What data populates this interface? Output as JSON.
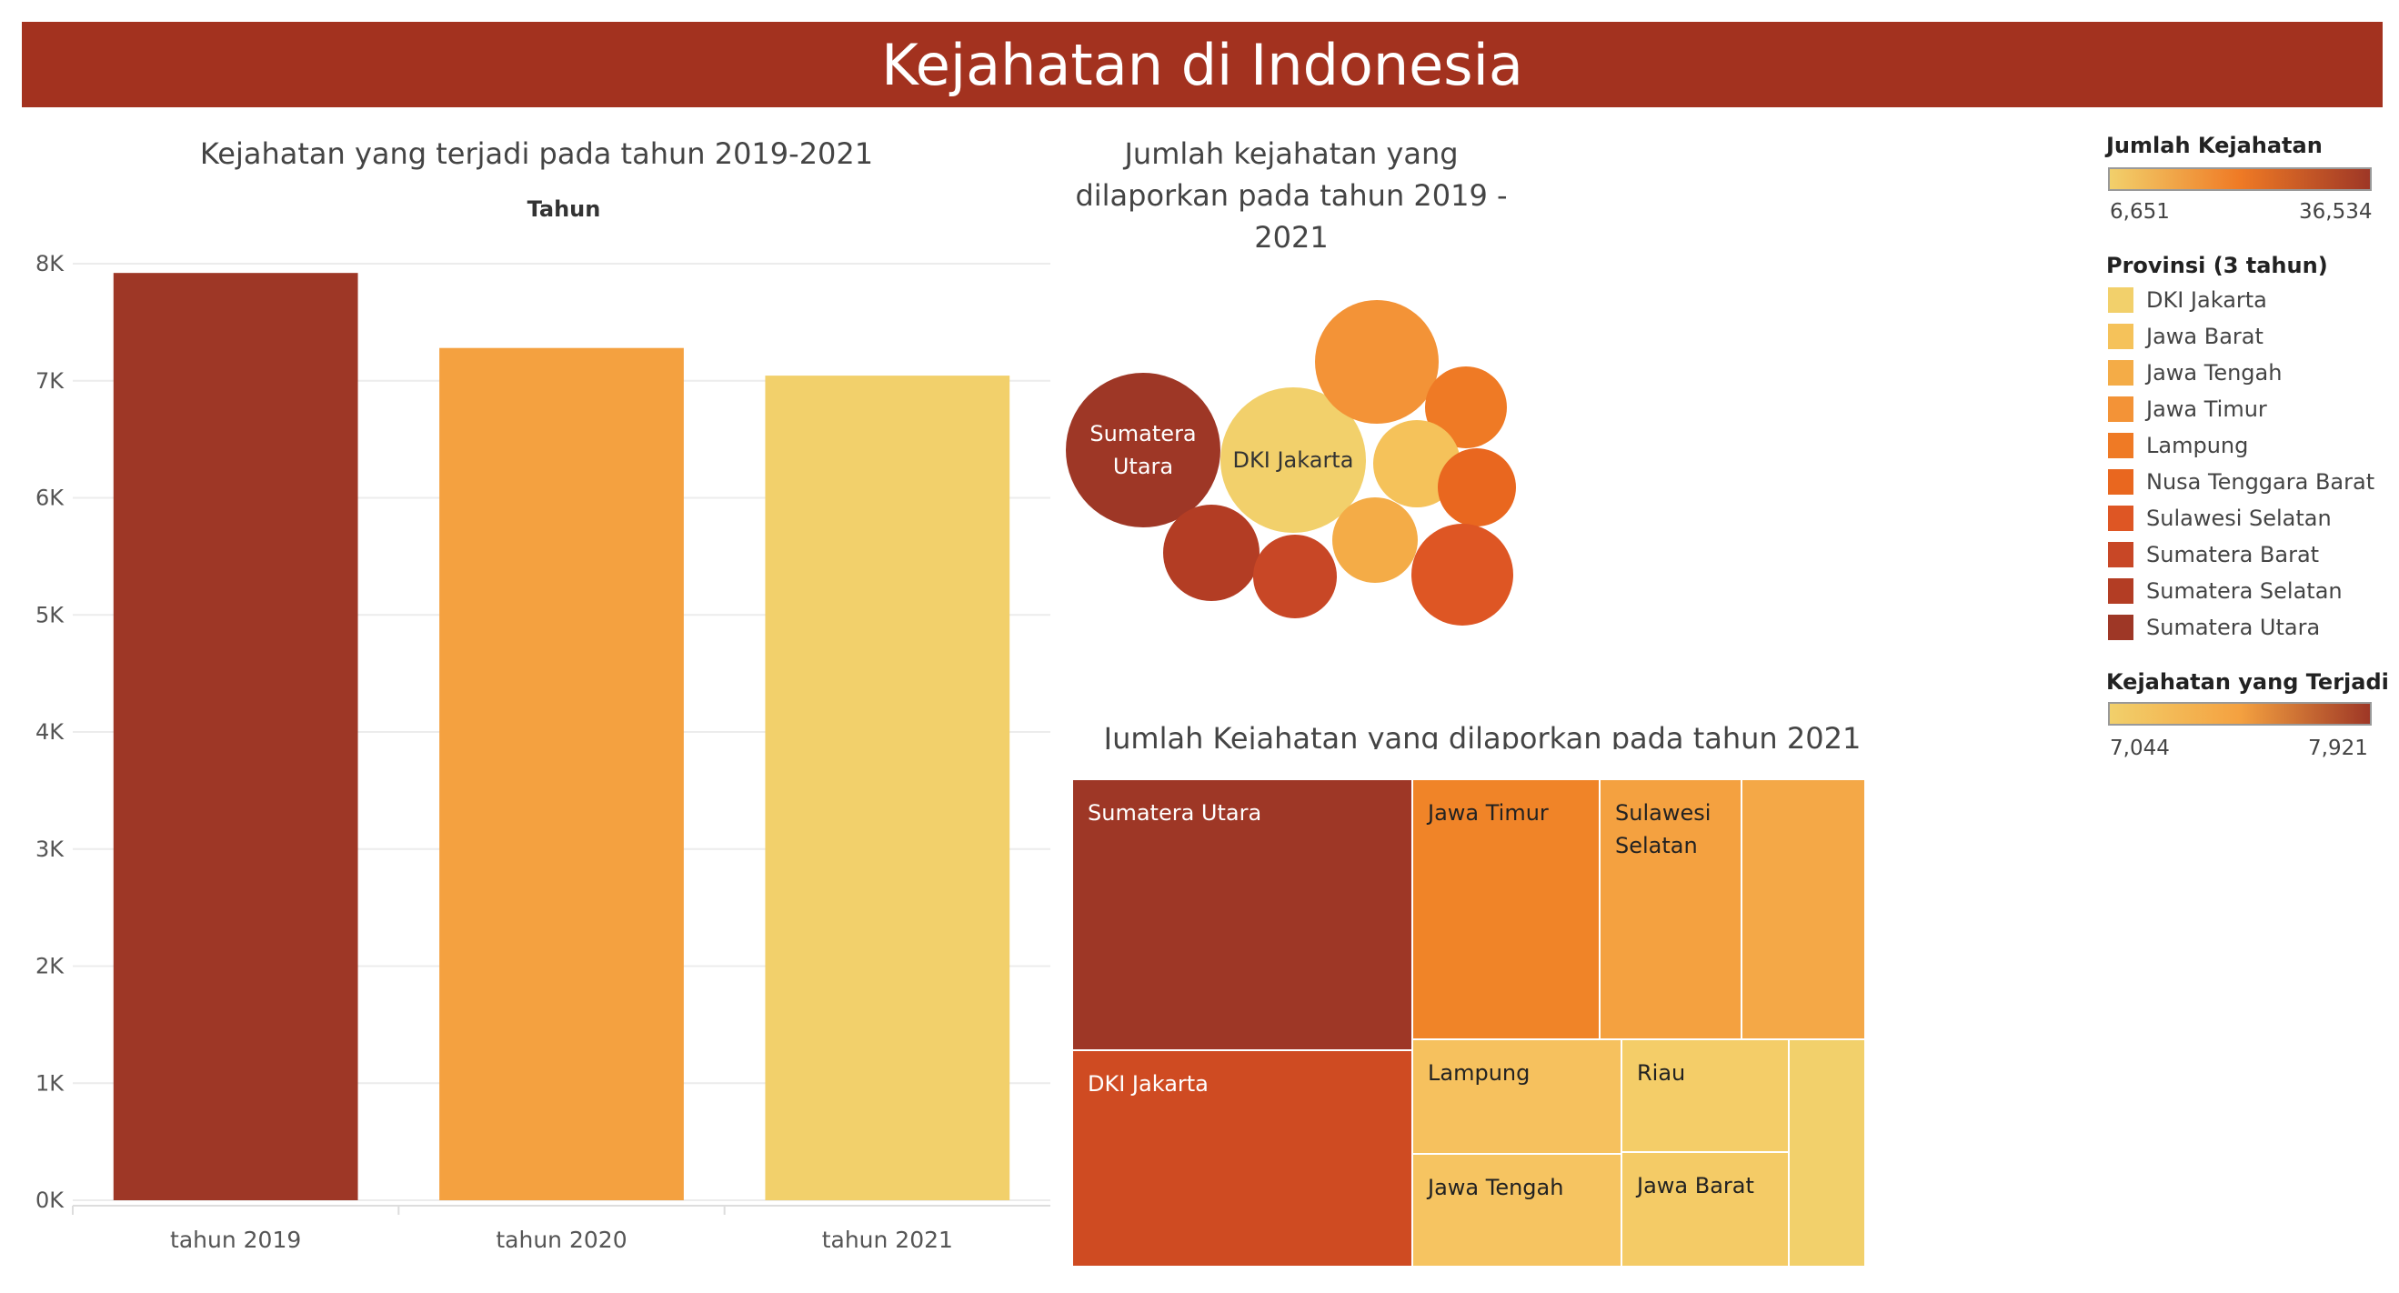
{
  "header": {
    "title": "Kejahatan di Indonesia"
  },
  "colors": {
    "banner": "#a3321f",
    "bar_2019": "#9e3726",
    "bar_2020": "#f4a140",
    "bar_2021": "#f2d06b"
  },
  "legends": {
    "jumlah_kejahatan": {
      "title": "Jumlah Kejahatan",
      "min": "6,651",
      "max": "36,534"
    },
    "provinsi": {
      "title": "Provinsi (3 tahun)",
      "items": [
        {
          "label": "DKI Jakarta",
          "color": "#f2d06b"
        },
        {
          "label": "Jawa Barat",
          "color": "#f5c25a"
        },
        {
          "label": "Jawa Tengah",
          "color": "#f4ac47"
        },
        {
          "label": "Jawa Timur",
          "color": "#f39337"
        },
        {
          "label": "Lampung",
          "color": "#ef7a25"
        },
        {
          "label": "Nusa Tenggara Barat",
          "color": "#e9671f"
        },
        {
          "label": "Sulawesi Selatan",
          "color": "#de5624"
        },
        {
          "label": "Sumatera Barat",
          "color": "#c84726"
        },
        {
          "label": "Sumatera Selatan",
          "color": "#b33d24"
        },
        {
          "label": "Sumatera Utara",
          "color": "#9e3726"
        }
      ]
    },
    "kejahatan_terjadi": {
      "title": "Kejahatan yang Terjadi",
      "min": "7,044",
      "max": "7,921"
    }
  },
  "chart_data": [
    {
      "type": "bar",
      "title": "Kejahatan yang terjadi pada tahun 2019-2021",
      "subtitle": "Tahun",
      "categories": [
        "tahun 2019",
        "tahun 2020",
        "tahun 2021"
      ],
      "values": [
        7921,
        7280,
        7044
      ],
      "colors": [
        "#9e3726",
        "#f4a140",
        "#f2d06b"
      ],
      "ylim": [
        0,
        8000
      ],
      "yticks": [
        0,
        1000,
        2000,
        3000,
        4000,
        5000,
        6000,
        7000,
        8000
      ],
      "ytick_labels": [
        "0K",
        "1K",
        "2K",
        "3K",
        "4K",
        "5K",
        "6K",
        "7K",
        "8K"
      ],
      "grid": true
    },
    {
      "type": "bubble",
      "title": "Jumlah kejahatan yang dilaporkan pada tahun 2019 - 2021",
      "bubbles": [
        {
          "label": "Sumatera Utara",
          "color": "#9e3726"
        },
        {
          "label": "DKI Jakarta",
          "color": "#f2d06b"
        },
        {
          "label": "",
          "color": "#f39337"
        },
        {
          "label": "",
          "color": "#ef7a25"
        },
        {
          "label": "",
          "color": "#f5c25a"
        },
        {
          "label": "",
          "color": "#e9671f"
        },
        {
          "label": "",
          "color": "#b33d24"
        },
        {
          "label": "",
          "color": "#c84726"
        },
        {
          "label": "",
          "color": "#f4ac47"
        },
        {
          "label": "",
          "color": "#de5624"
        }
      ]
    },
    {
      "type": "treemap",
      "title": "Jumlah Kejahatan yang dilaporkan pada tahun 2021",
      "tiles": [
        {
          "label": "Sumatera Utara",
          "color": "#9e3726"
        },
        {
          "label": "DKI Jakarta",
          "color": "#cf4b22"
        },
        {
          "label": "Jawa Timur",
          "color": "#f08428"
        },
        {
          "label": "Sulawesi Selatan",
          "color": "#f4a140"
        },
        {
          "label": "",
          "color": "#f4a847"
        },
        {
          "label": "Lampung",
          "color": "#f6c15e"
        },
        {
          "label": "Jawa Tengah",
          "color": "#f6c461"
        },
        {
          "label": "Riau",
          "color": "#f4cd68"
        },
        {
          "label": "Jawa Barat",
          "color": "#f4cb66"
        },
        {
          "label": "",
          "color": "#f2d06b"
        }
      ]
    }
  ]
}
